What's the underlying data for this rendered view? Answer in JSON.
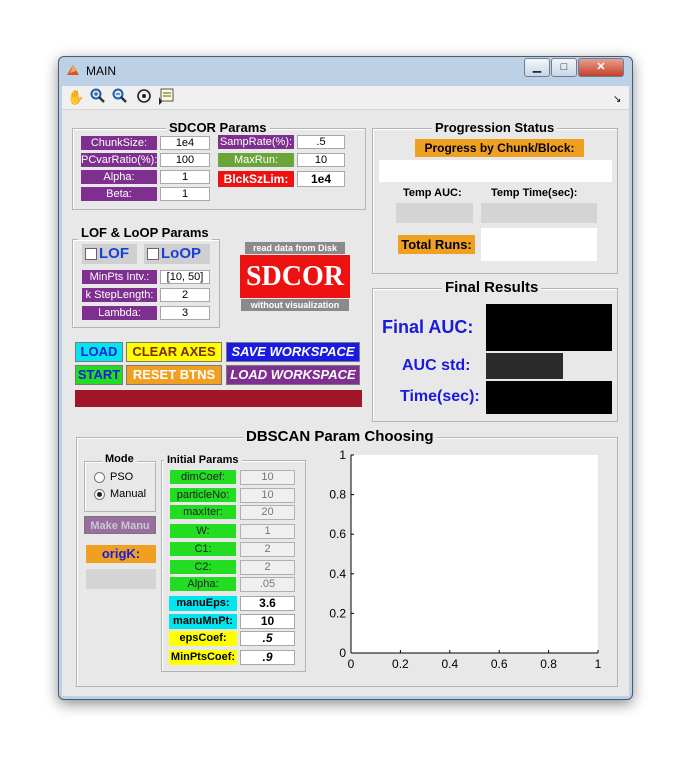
{
  "window": {
    "title": "MAIN",
    "minimize": "▁",
    "maximize": "□",
    "close": "✕"
  },
  "toolbar": {
    "tools": [
      "pan-tool",
      "zoom-in-tool",
      "zoom-out-tool",
      "rotate-tool",
      "data-cursor-tool"
    ]
  },
  "sdcor": {
    "title": "SDCOR Params",
    "left": [
      {
        "label": "ChunkSize:",
        "value": "1e4"
      },
      {
        "label": "PCvarRatio(%):",
        "value": "100"
      },
      {
        "label": "Alpha:",
        "value": "1"
      },
      {
        "label": "Beta:",
        "value": "1"
      }
    ],
    "right": [
      {
        "label": "SampRate(%):",
        "value": ".5"
      },
      {
        "label": "MaxRun:",
        "value": "10"
      },
      {
        "label": "BlckSzLim:",
        "value": "1e4"
      }
    ]
  },
  "progression": {
    "title": "Progression Status",
    "progress_label": "Progress by Chunk/Block:",
    "temp_auc": "Temp AUC:",
    "temp_time": "Temp Time(sec):",
    "total_runs": "Total Runs:"
  },
  "lof": {
    "title": "LOF & LoOP Params",
    "lof_label": "LOF",
    "loop_label": "LoOP",
    "rows": [
      {
        "label": "MinPts Intv.:",
        "value": "[10, 50]"
      },
      {
        "label": "k StepLength:",
        "value": "2"
      },
      {
        "label": "Lambda:",
        "value": "3"
      }
    ]
  },
  "sdcor_logo": {
    "top": "read data from Disk",
    "main": "SDCOR",
    "bottom": "without visualization"
  },
  "final": {
    "title": "Final Results",
    "auc": "Final AUC:",
    "std": "AUC std:",
    "time": "Time(sec):"
  },
  "buttons": {
    "load": "LOAD",
    "clear": "CLEAR AXES",
    "save": "SAVE WORKSPACE",
    "start": "START",
    "reset": "RESET BTNS",
    "loadws": "LOAD WORKSPACE"
  },
  "dbscan": {
    "title": "DBSCAN Param Choosing",
    "mode_title": "Mode",
    "pso": "PSO",
    "manual": "Manual",
    "make_manu": "Make Manu",
    "origk": "origK:",
    "init_title": "Initial Params",
    "params": [
      {
        "label": "dimCoef:",
        "value": "10"
      },
      {
        "label": "particleNo:",
        "value": "10"
      },
      {
        "label": "maxIter:",
        "value": "20"
      },
      {
        "label": "W:",
        "value": "1"
      },
      {
        "label": "C1:",
        "value": "2"
      },
      {
        "label": "C2:",
        "value": "2"
      },
      {
        "label": "Alpha:",
        "value": ".05"
      }
    ],
    "manual_params": [
      {
        "label": "manuEps:",
        "value": "3.6",
        "color": "#00e5ee"
      },
      {
        "label": "manuMnPt:",
        "value": "10",
        "color": "#00e5ee"
      },
      {
        "label": "epsCoef:",
        "value": ".5",
        "color": "#ffff00"
      },
      {
        "label": "MinPtsCoef:",
        "value": ".9",
        "color": "#ffff00"
      }
    ]
  },
  "chart_data": {
    "type": "line",
    "series": [],
    "xlim": [
      0,
      1
    ],
    "ylim": [
      0,
      1
    ],
    "xticks": [
      "0",
      "0.2",
      "0.4",
      "0.6",
      "0.8",
      "1"
    ],
    "yticks": [
      "0",
      "0.2",
      "0.4",
      "0.6",
      "0.8",
      "1"
    ]
  }
}
